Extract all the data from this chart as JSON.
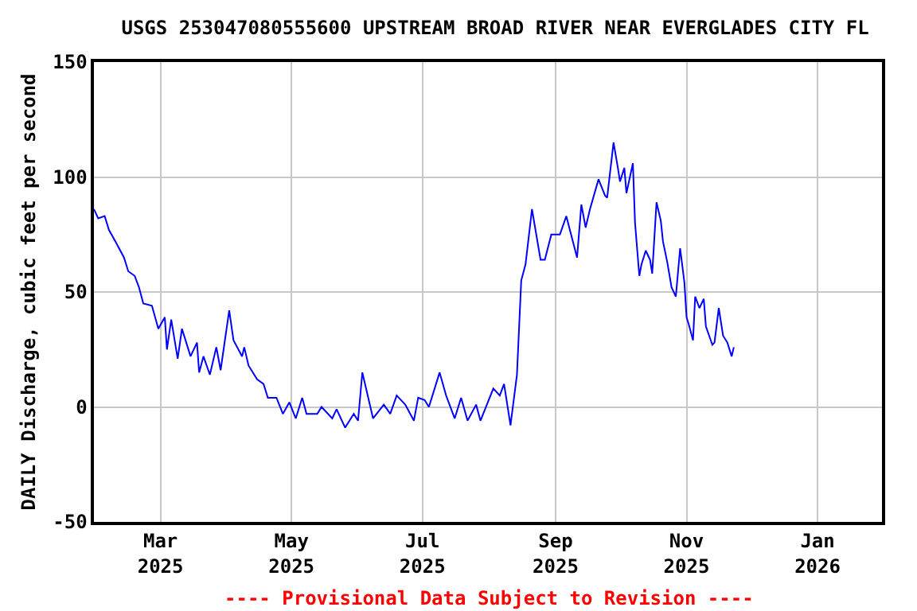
{
  "chart_data": {
    "type": "line",
    "title": "USGS 253047080555600 UPSTREAM BROAD RIVER NEAR EVERGLADES CITY FL",
    "ylabel": "DAILY Discharge, cubic feet per second",
    "annotations": [
      "---- Provisional Data Subject to Revision ----"
    ],
    "x": [
      "2025-01-29",
      "2025-01-31",
      "2025-02-03",
      "2025-02-05",
      "2025-02-08",
      "2025-02-12",
      "2025-02-14",
      "2025-02-17",
      "2025-02-19",
      "2025-02-21",
      "2025-02-25",
      "2025-02-28",
      "2025-03-03",
      "2025-03-04",
      "2025-03-06",
      "2025-03-09",
      "2025-03-11",
      "2025-03-15",
      "2025-03-18",
      "2025-03-19",
      "2025-03-21",
      "2025-03-24",
      "2025-03-27",
      "2025-03-29",
      "2025-04-02",
      "2025-04-04",
      "2025-04-08",
      "2025-04-09",
      "2025-04-11",
      "2025-04-15",
      "2025-04-18",
      "2025-04-20",
      "2025-04-24",
      "2025-04-27",
      "2025-04-30",
      "2025-05-03",
      "2025-05-06",
      "2025-05-08",
      "2025-05-13",
      "2025-05-15",
      "2025-05-20",
      "2025-05-22",
      "2025-05-26",
      "2025-05-30",
      "2025-06-01",
      "2025-06-03",
      "2025-06-08",
      "2025-06-13",
      "2025-06-16",
      "2025-06-19",
      "2025-06-23",
      "2025-06-27",
      "2025-06-29",
      "2025-07-02",
      "2025-07-04",
      "2025-07-09",
      "2025-07-12",
      "2025-07-16",
      "2025-07-19",
      "2025-07-22",
      "2025-07-26",
      "2025-07-28",
      "2025-08-03",
      "2025-08-06",
      "2025-08-08",
      "2025-08-11",
      "2025-08-14",
      "2025-08-16",
      "2025-08-18",
      "2025-08-21",
      "2025-08-25",
      "2025-08-27",
      "2025-08-30",
      "2025-09-03",
      "2025-09-06",
      "2025-09-11",
      "2025-09-13",
      "2025-09-15",
      "2025-09-17",
      "2025-09-21",
      "2025-09-24",
      "2025-09-25",
      "2025-09-28",
      "2025-09-30",
      "2025-10-01",
      "2025-10-03",
      "2025-10-04",
      "2025-10-07",
      "2025-10-08",
      "2025-10-10",
      "2025-10-11",
      "2025-10-13",
      "2025-10-15",
      "2025-10-16",
      "2025-10-18",
      "2025-10-20",
      "2025-10-21",
      "2025-10-23",
      "2025-10-25",
      "2025-10-27",
      "2025-10-29",
      "2025-10-31",
      "2025-11-01",
      "2025-11-02",
      "2025-11-04",
      "2025-11-05",
      "2025-11-07",
      "2025-11-09",
      "2025-11-10",
      "2025-11-13",
      "2025-11-14",
      "2025-11-16",
      "2025-11-18",
      "2025-11-20",
      "2025-11-22",
      "2025-11-23"
    ],
    "series": [
      {
        "color": "#0000ff",
        "values": [
          86,
          82,
          83,
          77,
          72,
          65,
          59,
          57,
          52,
          45,
          44,
          34,
          39,
          25,
          38,
          21,
          34,
          22,
          28,
          15,
          22,
          14,
          26,
          16,
          42,
          29,
          22,
          26,
          18,
          12,
          10,
          4,
          4,
          -3,
          2,
          -5,
          4,
          -3,
          -3,
          0,
          -5,
          -1,
          -9,
          -3,
          -6,
          15,
          -5,
          1,
          -3,
          5,
          1,
          -6,
          4,
          3,
          0,
          15,
          5,
          -5,
          4,
          -6,
          1,
          -6,
          8,
          5,
          10,
          -8,
          14,
          55,
          62,
          86,
          64,
          64,
          75,
          75,
          83,
          65,
          88,
          78,
          86,
          99,
          92,
          91,
          115,
          104,
          98,
          104,
          93,
          106,
          80,
          57,
          62,
          68,
          64,
          58,
          89,
          81,
          72,
          63,
          52,
          48,
          69,
          54,
          39,
          36,
          29,
          48,
          43,
          47,
          35,
          27,
          28,
          43,
          31,
          28,
          22,
          26
        ]
      }
    ],
    "xlim": [
      "2025-01-29",
      "2026-01-31"
    ],
    "xticks": [
      {
        "value": "2025-03-01",
        "label": "Mar\n2025"
      },
      {
        "value": "2025-05-01",
        "label": "May\n2025"
      },
      {
        "value": "2025-07-01",
        "label": "Jul\n2025"
      },
      {
        "value": "2025-09-01",
        "label": "Sep\n2025"
      },
      {
        "value": "2025-11-01",
        "label": "Nov\n2025"
      },
      {
        "value": "2026-01-01",
        "label": "Jan\n2026"
      }
    ],
    "ylim": [
      -50,
      150
    ],
    "yticks": [
      -50,
      0,
      50,
      100,
      150
    ],
    "grid": true,
    "line_style": "solid",
    "marker": "none"
  }
}
